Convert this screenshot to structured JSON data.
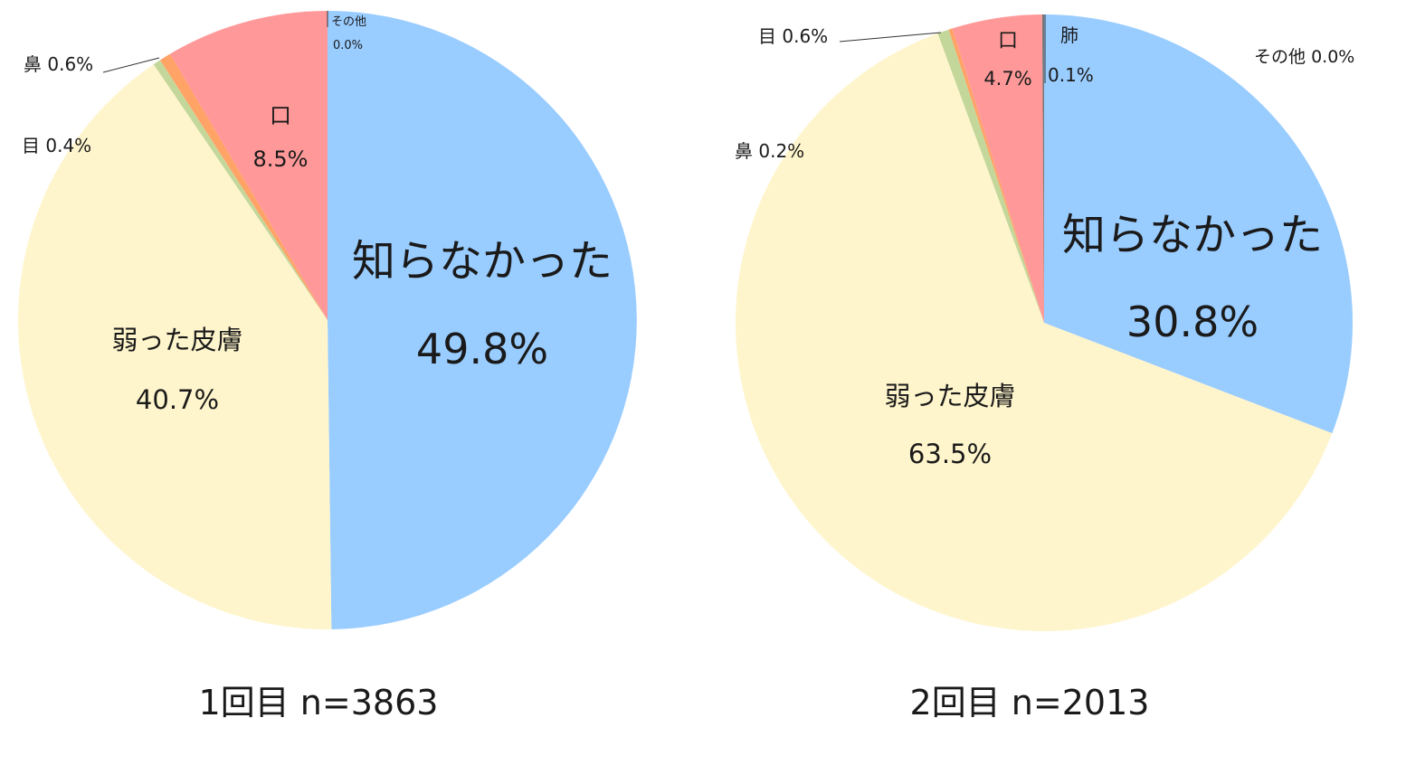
{
  "chart_data": [
    {
      "type": "pie",
      "caption": "1回目 n=3863",
      "slices": [
        {
          "label": "知らなかった",
          "value": 49.8,
          "value_label": "49.8%",
          "color": "#99ccff"
        },
        {
          "label": "弱った皮膚",
          "value": 40.7,
          "value_label": "40.7%",
          "color": "#fff5cc"
        },
        {
          "label": "目",
          "value": 0.4,
          "value_label": "0.4%",
          "color": "#c4d79b"
        },
        {
          "label": "鼻",
          "value": 0.6,
          "value_label": "0.6%",
          "color": "#ffa366"
        },
        {
          "label": "口",
          "value": 8.5,
          "value_label": "8.5%",
          "color": "#ff9999"
        },
        {
          "label": "その他",
          "value": 0.0,
          "value_label": "0.0%",
          "color": "#888888"
        }
      ]
    },
    {
      "type": "pie",
      "caption": "2回目 n=2013",
      "slices": [
        {
          "label": "知らなかった",
          "value": 30.8,
          "value_label": "30.8%",
          "color": "#99ccff"
        },
        {
          "label": "弱った皮膚",
          "value": 63.5,
          "value_label": "63.5%",
          "color": "#fff5cc"
        },
        {
          "label": "目",
          "value": 0.6,
          "value_label": "0.6%",
          "color": "#c4d79b"
        },
        {
          "label": "鼻",
          "value": 0.2,
          "value_label": "0.2%",
          "color": "#ffa366"
        },
        {
          "label": "口",
          "value": 4.7,
          "value_label": "4.7%",
          "color": "#ff9999"
        },
        {
          "label": "肺",
          "value": 0.1,
          "value_label": "0.1%",
          "color": "#777777"
        },
        {
          "label": "その他",
          "value": 0.0,
          "value_label": "0.0%",
          "color": "#888888"
        }
      ]
    }
  ]
}
